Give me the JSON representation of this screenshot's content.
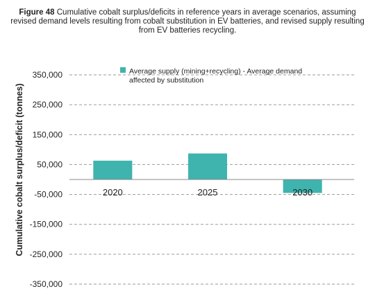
{
  "caption": {
    "figure_label": "Figure 48",
    "text": "Cumulative cobalt surplus/deficits in reference years in average scenarios, assuming revised demand levels resulting from cobalt substitution in EV batteries, and revised supply resulting from EV batteries recycling."
  },
  "chart_data": {
    "type": "bar",
    "categories": [
      "2020",
      "2025",
      "2030"
    ],
    "series": [
      {
        "name": "Average supply (mining+recycling) - Average demand affected by substitution",
        "values": [
          63000,
          87000,
          -45000
        ],
        "color": "#3fb3ae"
      }
    ],
    "ylabel": "Cumulative cobalt surplus/deficit (tonnes)",
    "ylim": [
      -350000,
      350000
    ],
    "yticks": [
      350000,
      250000,
      150000,
      50000,
      -50000,
      -150000,
      -250000,
      -350000
    ],
    "ytick_labels": [
      "350,000",
      "250,000",
      "150,000",
      "50,000",
      "-50,000",
      "-150,000",
      "-250,000",
      "-350,000"
    ],
    "grid": "dashed horizontal",
    "legend": {
      "placement": "top-center",
      "lines": [
        "Average supply (mining+recycling) - Average demand",
        "affected by substitution"
      ]
    }
  }
}
